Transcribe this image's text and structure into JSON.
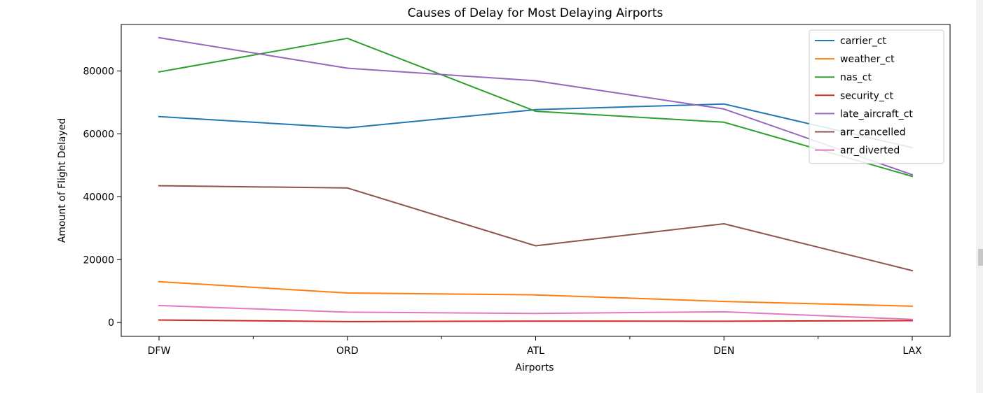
{
  "chart_data": {
    "type": "line",
    "title": "Causes of Delay for Most Delaying Airports",
    "xlabel": "Airports",
    "ylabel": "Amount of Flight Delayed",
    "categories": [
      "DFW",
      "ORD",
      "ATL",
      "DEN",
      "LAX"
    ],
    "ylim": [
      -4400,
      94800
    ],
    "yticks": [
      0,
      20000,
      40000,
      60000,
      80000
    ],
    "grid": false,
    "legend_position": "top-right",
    "series": [
      {
        "name": "carrier_ct",
        "color": "#1f77b4",
        "values": [
          65500,
          61900,
          67700,
          69500,
          55600
        ]
      },
      {
        "name": "weather_ct",
        "color": "#ff7f0e",
        "values": [
          13000,
          9400,
          8800,
          6700,
          5200
        ]
      },
      {
        "name": "nas_ct",
        "color": "#2ca02c",
        "values": [
          79700,
          90400,
          67200,
          63700,
          46500
        ]
      },
      {
        "name": "security_ct",
        "color": "#d62728",
        "values": [
          800,
          300,
          450,
          400,
          600
        ]
      },
      {
        "name": "late_aircraft_ct",
        "color": "#9467bd",
        "values": [
          90600,
          80900,
          76900,
          67900,
          47000
        ]
      },
      {
        "name": "arr_cancelled",
        "color": "#8c564b",
        "values": [
          43500,
          42800,
          24400,
          31400,
          16500
        ]
      },
      {
        "name": "arr_diverted",
        "color": "#e377c2",
        "values": [
          5400,
          3300,
          2900,
          3400,
          1000
        ]
      }
    ]
  }
}
